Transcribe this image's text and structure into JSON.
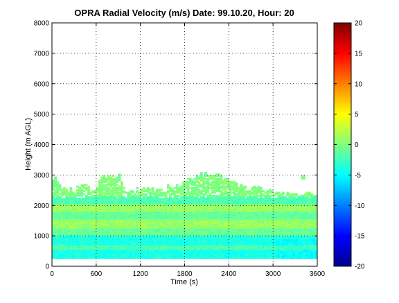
{
  "chart_data": {
    "type": "heatmap",
    "title": "OPRA Radial Velocity (m/s)  Date: 99.10.20, Hour: 20",
    "xlabel": "Time (s)",
    "ylabel": "Height (m AGL)",
    "xlim": [
      0,
      3600
    ],
    "ylim": [
      0,
      8000
    ],
    "xticks": [
      "0",
      "600",
      "1200",
      "1800",
      "2400",
      "3000",
      "3600"
    ],
    "yticks": [
      "0",
      "1000",
      "2000",
      "3000",
      "4000",
      "5000",
      "6000",
      "7000",
      "8000"
    ],
    "grid": true,
    "colorbar": {
      "range": [
        -20,
        20
      ],
      "colormap": "jet",
      "ticks": [
        "-20",
        "-15",
        "-10",
        "-5",
        "0",
        "5",
        "10",
        "15",
        "20"
      ]
    },
    "data_extent": {
      "time_range": [
        0,
        3600
      ],
      "height_base": 250,
      "echo_tops": [
        {
          "t": 0,
          "h": 2950
        },
        {
          "t": 150,
          "h": 2600
        },
        {
          "t": 300,
          "h": 2450
        },
        {
          "t": 450,
          "h": 2800
        },
        {
          "t": 540,
          "h": 2300
        },
        {
          "t": 650,
          "h": 2850
        },
        {
          "t": 800,
          "h": 2950
        },
        {
          "t": 900,
          "h": 3000
        },
        {
          "t": 1000,
          "h": 2500
        },
        {
          "t": 1200,
          "h": 2500
        },
        {
          "t": 1500,
          "h": 2500
        },
        {
          "t": 1800,
          "h": 2750
        },
        {
          "t": 2000,
          "h": 3000
        },
        {
          "t": 2200,
          "h": 3050
        },
        {
          "t": 2400,
          "h": 2800
        },
        {
          "t": 2600,
          "h": 2600
        },
        {
          "t": 3000,
          "h": 2450
        },
        {
          "t": 3300,
          "h": 2400
        },
        {
          "t": 3600,
          "h": 2350
        }
      ],
      "height_bands": [
        {
          "h0": 250,
          "h1": 550,
          "v": -4
        },
        {
          "h0": 550,
          "h1": 700,
          "v": -2
        },
        {
          "h0": 700,
          "h1": 1000,
          "v": -4
        },
        {
          "h0": 1000,
          "h1": 1250,
          "v": -1
        },
        {
          "h0": 1250,
          "h1": 1550,
          "v": 1
        },
        {
          "h0": 1550,
          "h1": 1800,
          "v": -1
        },
        {
          "h0": 1800,
          "h1": 2050,
          "v": 1
        },
        {
          "h0": 2050,
          "h1": 2300,
          "v": -2
        },
        {
          "h0": 2300,
          "h1": 3100,
          "v": 0
        }
      ]
    }
  }
}
